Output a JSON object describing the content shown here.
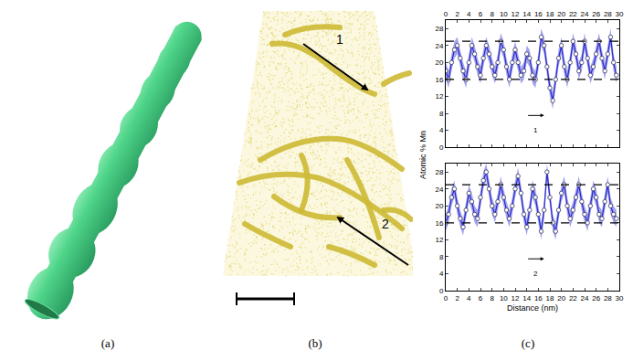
{
  "figure": {
    "panels": [
      {
        "label": "(a)"
      },
      {
        "label": "(b)",
        "arrows": [
          "1",
          "2"
        ]
      },
      {
        "label": "(c)"
      }
    ],
    "ylabel": "Atomic % Mn",
    "xlabel": "Distance (nm)"
  },
  "chart_data": [
    {
      "type": "line",
      "grid": false,
      "x": [
        0,
        0.5,
        1,
        1.5,
        2,
        2.5,
        3,
        3.5,
        4,
        4.5,
        5,
        5.5,
        6,
        6.5,
        7,
        7.5,
        8,
        8.5,
        9,
        9.5,
        10,
        10.5,
        11,
        11.5,
        12,
        12.5,
        13,
        13.5,
        14,
        14.5,
        15,
        15.5,
        16,
        16.5,
        17,
        17.5,
        18,
        18.5,
        19,
        19.5,
        20,
        20.5,
        21,
        21.5,
        22,
        22.5,
        23,
        23.5,
        24,
        24.5,
        25,
        25.5,
        26,
        26.5,
        27,
        27.5,
        28,
        28.5,
        29,
        29.5
      ],
      "series": [
        {
          "color": "#2a2ac8",
          "marker": "circle",
          "values": [
            18,
            16,
            20,
            23,
            24,
            21,
            18,
            16,
            20,
            24,
            22,
            19,
            17,
            21,
            24,
            22,
            19,
            17,
            20,
            25,
            23,
            19,
            16,
            20,
            23,
            20,
            17,
            18,
            22,
            21,
            17,
            16,
            20,
            26,
            24,
            19,
            14,
            11,
            16,
            21,
            24,
            19,
            16,
            20,
            25,
            22,
            18,
            20,
            25,
            21,
            17,
            19,
            22,
            25,
            21,
            18,
            22,
            26,
            20,
            17
          ],
          "error": [
            2,
            2,
            2,
            2,
            2,
            2,
            2,
            2,
            2,
            2,
            2,
            2,
            2,
            2,
            2,
            2,
            2,
            2,
            2,
            2,
            2,
            2,
            2,
            2,
            2,
            2,
            2,
            2,
            2,
            2,
            2,
            2,
            2,
            2,
            2,
            2,
            2,
            2,
            2,
            2,
            2,
            2,
            2,
            2,
            2,
            2,
            2,
            2,
            2,
            2,
            2,
            2,
            2,
            2,
            2,
            2,
            2,
            2,
            2,
            2
          ]
        }
      ],
      "xlim": [
        0,
        30
      ],
      "xticks": [
        0,
        2,
        4,
        6,
        8,
        10,
        12,
        14,
        16,
        18,
        20,
        22,
        24,
        26,
        28,
        30
      ],
      "ylim": [
        0,
        30
      ],
      "yticks": [
        0,
        4,
        8,
        12,
        16,
        20,
        24,
        28
      ],
      "hlines": [
        16,
        25
      ],
      "annotations": [
        {
          "text": "1",
          "x": 15.5,
          "y": 4
        }
      ]
    },
    {
      "type": "line",
      "grid": false,
      "x": [
        0,
        0.5,
        1,
        1.5,
        2,
        2.5,
        3,
        3.5,
        4,
        4.5,
        5,
        5.5,
        6,
        6.5,
        7,
        7.5,
        8,
        8.5,
        9,
        9.5,
        10,
        10.5,
        11,
        11.5,
        12,
        12.5,
        13,
        13.5,
        14,
        14.5,
        15,
        15.5,
        16,
        16.5,
        17,
        17.5,
        18,
        18.5,
        19,
        19.5,
        20,
        20.5,
        21,
        21.5,
        22,
        22.5,
        23,
        23.5,
        24,
        24.5,
        25,
        25.5,
        26,
        26.5,
        27,
        27.5,
        28,
        28.5,
        29,
        29.5
      ],
      "series": [
        {
          "color": "#2a2ac8",
          "marker": "circle",
          "values": [
            16,
            18,
            22,
            24,
            20,
            17,
            15,
            19,
            23,
            21,
            18,
            17,
            22,
            26,
            28,
            24,
            20,
            18,
            21,
            25,
            22,
            19,
            17,
            20,
            24,
            27,
            23,
            18,
            15,
            19,
            24,
            22,
            18,
            14,
            19,
            28,
            22,
            16,
            14,
            19,
            23,
            25,
            20,
            17,
            19,
            22,
            25,
            21,
            18,
            16,
            20,
            24,
            22,
            18,
            17,
            21,
            25,
            20,
            18,
            17
          ],
          "error": [
            2,
            2,
            2,
            2,
            2,
            2,
            2,
            2,
            2,
            2,
            2,
            2,
            2,
            2,
            2,
            2,
            2,
            2,
            2,
            2,
            2,
            2,
            2,
            2,
            2,
            2,
            2,
            2,
            2,
            2,
            2,
            2,
            2,
            2,
            2,
            2,
            2,
            2,
            2,
            2,
            2,
            2,
            2,
            2,
            2,
            2,
            2,
            2,
            2,
            2,
            2,
            2,
            2,
            2,
            2,
            2,
            2,
            2,
            2,
            2
          ]
        }
      ],
      "xlim": [
        0,
        30
      ],
      "xticks": [
        0,
        2,
        4,
        6,
        8,
        10,
        12,
        14,
        16,
        18,
        20,
        22,
        24,
        26,
        28,
        30
      ],
      "ylim": [
        0,
        30
      ],
      "yticks": [
        0,
        4,
        8,
        12,
        16,
        20,
        24,
        28
      ],
      "hlines": [
        16,
        25
      ],
      "annotations": [
        {
          "text": "2",
          "x": 15.5,
          "y": 4
        }
      ]
    }
  ]
}
